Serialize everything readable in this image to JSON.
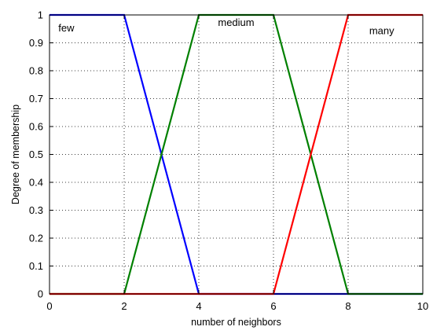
{
  "chart_data": {
    "type": "line",
    "xlabel": "number of neighbors",
    "ylabel": "Degree of membership",
    "xlim": [
      0,
      10
    ],
    "ylim": [
      0,
      1
    ],
    "xticks": [
      0,
      2,
      4,
      6,
      8,
      10
    ],
    "yticks": [
      0,
      0.1,
      0.2,
      0.3,
      0.4,
      0.5,
      0.6,
      0.7,
      0.8,
      0.9,
      1
    ],
    "grid": true,
    "series": [
      {
        "name": "few",
        "color": "#0000ff",
        "x": [
          0,
          2,
          4,
          10
        ],
        "y": [
          1,
          1,
          0,
          0
        ]
      },
      {
        "name": "medium",
        "color": "#008000",
        "x": [
          0,
          2,
          4,
          6,
          8,
          10
        ],
        "y": [
          0,
          0,
          1,
          1,
          0,
          0
        ]
      },
      {
        "name": "many",
        "color": "#ff0000",
        "x": [
          0,
          6,
          8,
          10
        ],
        "y": [
          0,
          0,
          1,
          1
        ]
      }
    ],
    "annotations": [
      {
        "text": "few",
        "x": 0.45,
        "y": 0.955
      },
      {
        "text": "medium",
        "x": 5.0,
        "y": 0.975
      },
      {
        "text": "many",
        "x": 8.9,
        "y": 0.945
      }
    ]
  }
}
